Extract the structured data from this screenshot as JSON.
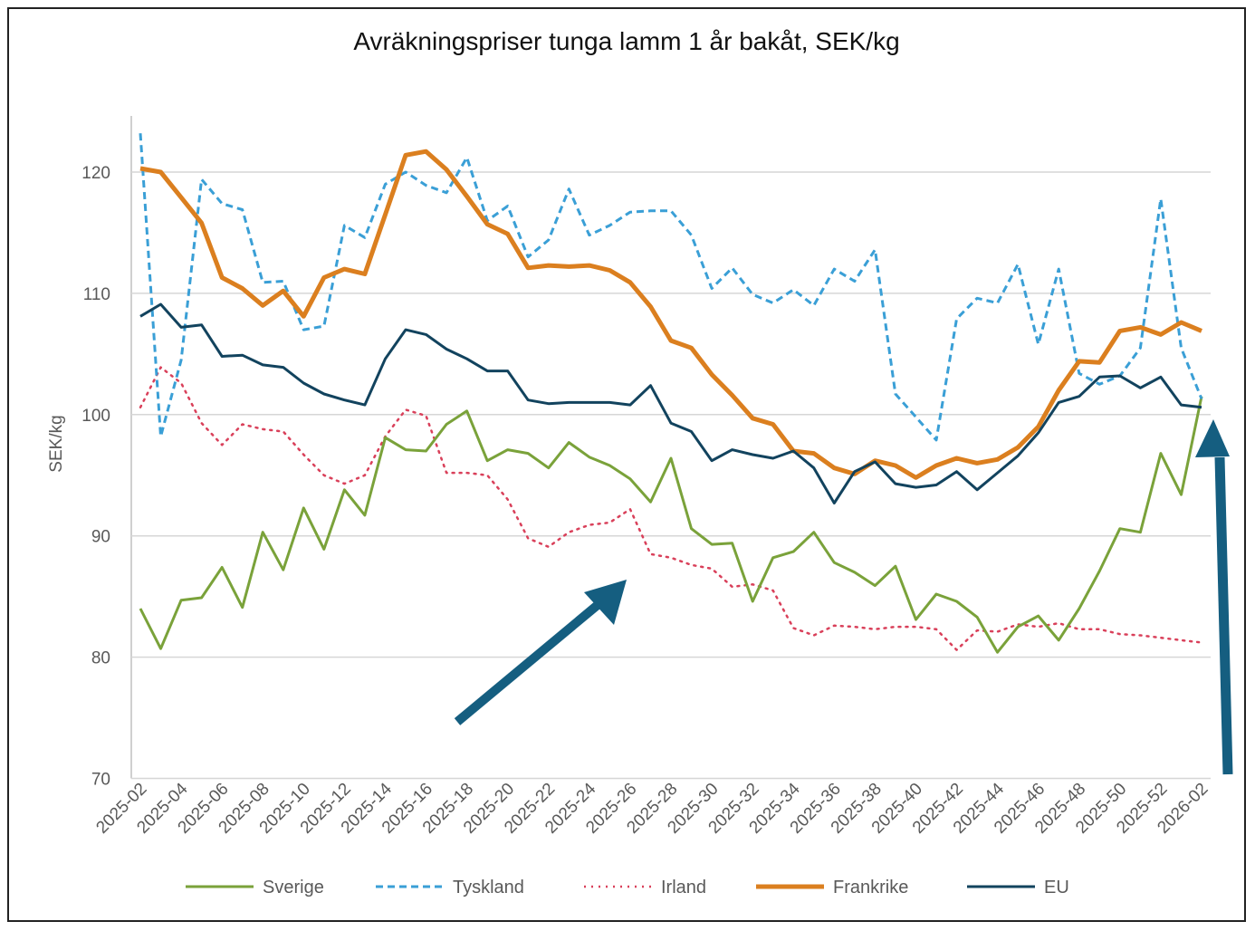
{
  "chart_data": {
    "type": "line",
    "title": "Avräkningspriser tunga lamm 1 år bakåt, SEK/kg",
    "xlabel": "",
    "ylabel": "SEK/kg",
    "ylim": [
      70,
      125
    ],
    "yticks": [
      70,
      80,
      90,
      100,
      110,
      120
    ],
    "grid": true,
    "legend_position": "bottom",
    "x_ticks": [
      "2025-02",
      "2025-04",
      "2025-06",
      "2025-08",
      "2025-10",
      "2025-12",
      "2025-14",
      "2025-16",
      "2025-18",
      "2025-20",
      "2025-22",
      "2025-24",
      "2025-26",
      "2025-28",
      "2025-30",
      "2025-32",
      "2025-34",
      "2025-36",
      "2025-38",
      "2025-40",
      "2025-42",
      "2025-44",
      "2025-46",
      "2025-48",
      "2025-50",
      "2025-52",
      "2026-02"
    ],
    "x_tick_point_index": [
      0,
      2,
      4,
      6,
      8,
      10,
      12,
      14,
      16,
      18,
      20,
      22,
      24,
      26,
      28,
      30,
      32,
      34,
      36,
      38,
      40,
      42,
      44,
      46,
      48,
      50,
      52
    ],
    "point_count": 53,
    "series": [
      {
        "name": "Sverige",
        "color": "#7aa23a",
        "style": "solid",
        "values": [
          84.0,
          80.7,
          84.7,
          84.9,
          87.4,
          84.1,
          90.3,
          87.2,
          92.3,
          88.9,
          93.8,
          91.7,
          98.1,
          97.1,
          97.0,
          99.2,
          100.3,
          96.2,
          97.1,
          96.8,
          95.6,
          97.7,
          96.5,
          95.8,
          94.7,
          92.8,
          96.4,
          90.6,
          89.3,
          89.4,
          84.6,
          88.2,
          88.7,
          90.3,
          87.8,
          87.0,
          85.9,
          87.5,
          83.1,
          85.2,
          84.6,
          83.3,
          80.4,
          82.5,
          83.4,
          81.4,
          84.0,
          87.1,
          90.6,
          90.3,
          96.8,
          93.4,
          101.5
        ]
      },
      {
        "name": "Tyskland",
        "color": "#3a9fd6",
        "style": "dashed",
        "values": [
          123.2,
          98.2,
          104.5,
          119.4,
          117.4,
          116.9,
          110.9,
          111.0,
          107.0,
          107.3,
          115.6,
          114.6,
          119.0,
          120.0,
          118.9,
          118.3,
          121.2,
          116.0,
          117.2,
          113.0,
          114.4,
          118.6,
          114.8,
          115.6,
          116.7,
          116.8,
          116.8,
          114.8,
          110.4,
          112.1,
          109.9,
          109.2,
          110.3,
          109.0,
          112.0,
          111.0,
          113.6,
          101.7,
          99.8,
          97.9,
          107.9,
          109.6,
          109.2,
          112.4,
          105.8,
          112.0,
          103.4,
          102.5,
          103.2,
          105.5,
          117.8,
          105.5,
          101.3
        ]
      },
      {
        "name": "Irland",
        "color": "#d9405a",
        "style": "dotted",
        "values": [
          100.6,
          103.9,
          102.6,
          99.3,
          97.5,
          99.2,
          98.8,
          98.6,
          96.7,
          95.0,
          94.3,
          95.0,
          98.2,
          100.4,
          99.9,
          95.2,
          95.2,
          95.0,
          93.0,
          89.8,
          89.1,
          90.3,
          90.9,
          91.1,
          92.2,
          88.5,
          88.2,
          87.6,
          87.3,
          85.8,
          86.0,
          85.5,
          82.4,
          81.8,
          82.6,
          82.5,
          82.3,
          82.5,
          82.5,
          82.3,
          80.6,
          82.2,
          82.1,
          82.7,
          82.5,
          82.8,
          82.3,
          82.3,
          81.9,
          81.8,
          81.6,
          81.4,
          81.2
        ]
      },
      {
        "name": "Frankrike",
        "color": "#db7f1f",
        "style": "thick",
        "values": [
          120.3,
          120.0,
          117.9,
          115.8,
          111.3,
          110.4,
          109.0,
          110.2,
          108.1,
          111.3,
          112.0,
          111.6,
          116.5,
          121.4,
          121.7,
          120.2,
          118.0,
          115.7,
          114.9,
          112.1,
          112.3,
          112.2,
          112.3,
          111.9,
          110.9,
          108.9,
          106.1,
          105.5,
          103.3,
          101.6,
          99.7,
          99.2,
          97.0,
          96.8,
          95.6,
          95.1,
          96.2,
          95.8,
          94.8,
          95.8,
          96.4,
          96.0,
          96.3,
          97.3,
          99.0,
          102.0,
          104.4,
          104.3,
          106.9,
          107.2,
          106.6,
          107.6,
          106.9
        ]
      },
      {
        "name": "EU",
        "color": "#12435e",
        "style": "solid",
        "values": [
          108.1,
          109.1,
          107.2,
          107.4,
          104.8,
          104.9,
          104.1,
          103.9,
          102.6,
          101.7,
          101.2,
          100.8,
          104.6,
          107.0,
          106.6,
          105.4,
          104.6,
          103.6,
          103.6,
          101.2,
          100.9,
          101.0,
          101.0,
          101.0,
          100.8,
          102.4,
          99.3,
          98.6,
          96.2,
          97.1,
          96.7,
          96.4,
          97.0,
          95.6,
          92.7,
          95.3,
          96.1,
          94.3,
          94.0,
          94.2,
          95.3,
          93.8,
          95.2,
          96.6,
          98.5,
          101.0,
          101.5,
          103.1,
          103.2,
          102.2,
          103.1,
          100.8,
          100.6
        ]
      }
    ],
    "annotation_color": "#155e80"
  }
}
